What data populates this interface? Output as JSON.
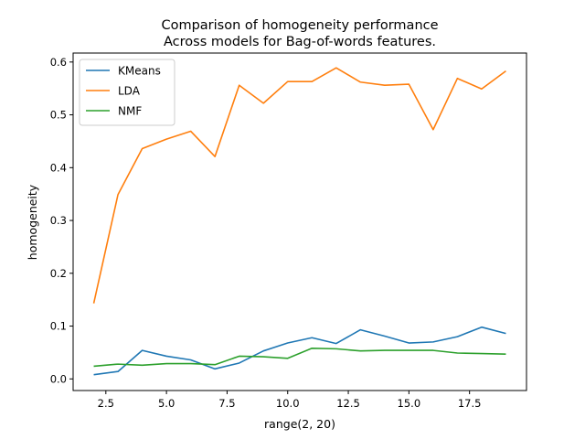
{
  "chart_data": {
    "type": "line",
    "title_lines": [
      "Comparison of homogeneity performance",
      "Across models for Bag-of-words features."
    ],
    "xlabel": "range(2, 20)",
    "ylabel": "homogeneity",
    "x": [
      2,
      3,
      4,
      5,
      6,
      7,
      8,
      9,
      10,
      11,
      12,
      13,
      14,
      15,
      16,
      17,
      18,
      19
    ],
    "xlim": [
      1.15,
      19.85
    ],
    "ylim": [
      -0.022,
      0.617
    ],
    "xticks": [
      2.5,
      5.0,
      7.5,
      10.0,
      12.5,
      15.0,
      17.5
    ],
    "xtick_labels": [
      "2.5",
      "5.0",
      "7.5",
      "10.0",
      "12.5",
      "15.0",
      "17.5"
    ],
    "yticks": [
      0.0,
      0.1,
      0.2,
      0.3,
      0.4,
      0.5,
      0.6
    ],
    "ytick_labels": [
      "0.0",
      "0.1",
      "0.2",
      "0.3",
      "0.4",
      "0.5",
      "0.6"
    ],
    "grid": false,
    "legend_position": "top-left",
    "series": [
      {
        "name": "KMeans",
        "color": "#1f77b4",
        "values": [
          0.008,
          0.014,
          0.054,
          0.043,
          0.036,
          0.019,
          0.03,
          0.053,
          0.068,
          0.078,
          0.067,
          0.093,
          0.081,
          0.068,
          0.07,
          0.08,
          0.098,
          0.086
        ]
      },
      {
        "name": "LDA",
        "color": "#ff7f0e",
        "values": [
          0.143,
          0.349,
          0.436,
          0.454,
          0.469,
          0.421,
          0.556,
          0.522,
          0.563,
          0.563,
          0.589,
          0.562,
          0.556,
          0.558,
          0.472,
          0.569,
          0.549,
          0.583
        ]
      },
      {
        "name": "NMF",
        "color": "#2ca02c",
        "values": [
          0.024,
          0.028,
          0.026,
          0.029,
          0.029,
          0.027,
          0.043,
          0.042,
          0.039,
          0.058,
          0.057,
          0.053,
          0.054,
          0.054,
          0.054,
          0.049,
          0.048,
          0.047
        ]
      }
    ]
  }
}
